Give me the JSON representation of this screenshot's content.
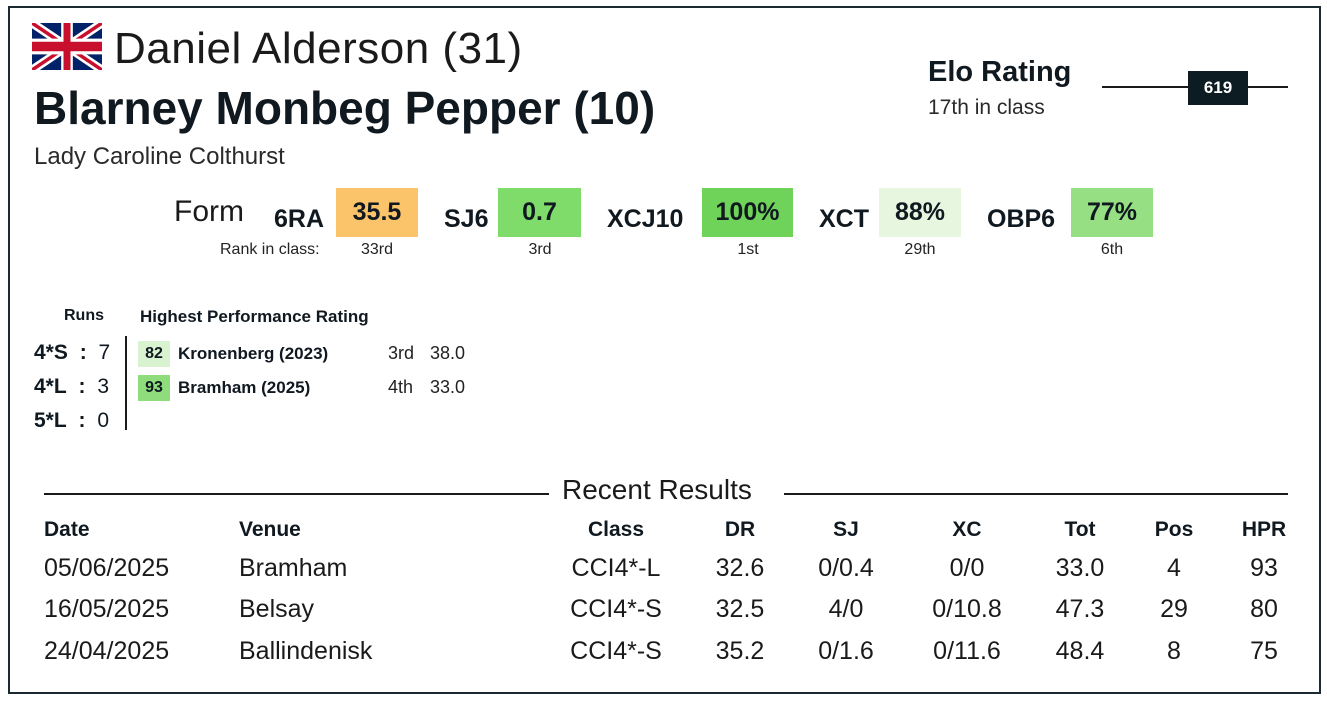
{
  "header": {
    "rider": "Daniel Alderson (31)",
    "horse": "Blarney Monbeg Pepper (10)",
    "owner": "Lady Caroline Colthurst",
    "flag_icon": "uk-flag-icon"
  },
  "elo": {
    "title": "Elo Rating",
    "subtitle": "17th in class",
    "value": "619"
  },
  "form": {
    "label": "Form",
    "rank_label": "Rank in class:",
    "items": [
      {
        "key": "6RA",
        "value": "35.5",
        "rank": "33rd",
        "color": "#fbc46a"
      },
      {
        "key": "SJ6",
        "value": "0.7",
        "rank": "3rd",
        "color": "#7fdb6a"
      },
      {
        "key": "XCJ10",
        "value": "100%",
        "rank": "1st",
        "color": "#6fd35a"
      },
      {
        "key": "XCT",
        "value": "88%",
        "rank": "29th",
        "color": "#e6f6df"
      },
      {
        "key": "OBP6",
        "value": "77%",
        "rank": "6th",
        "color": "#97df83"
      }
    ]
  },
  "runs": {
    "heading": "Runs",
    "rows": [
      {
        "level": "4*S",
        "sep": ":",
        "count": "7"
      },
      {
        "level": "4*L",
        "sep": ":",
        "count": "3"
      },
      {
        "level": "5*L",
        "sep": ":",
        "count": "0"
      }
    ]
  },
  "hpr": {
    "heading": "Highest Performance Rating",
    "rows": [
      {
        "score": "82",
        "event": "Kronenberg  (2023)",
        "pos": "3rd",
        "value": "38.0",
        "color": "#d9f2d0"
      },
      {
        "score": "93",
        "event": "Bramham  (2025)",
        "pos": "4th",
        "value": "33.0",
        "color": "#8fdc7c"
      }
    ]
  },
  "recent": {
    "title": "Recent Results",
    "columns": [
      "Date",
      "Venue",
      "Class",
      "DR",
      "SJ",
      "XC",
      "Tot",
      "Pos",
      "HPR"
    ],
    "rows": [
      [
        "05/06/2025",
        "Bramham",
        "CCI4*-L",
        "32.6",
        "0/0.4",
        "0/0",
        "33.0",
        "4",
        "93"
      ],
      [
        "16/05/2025",
        "Belsay",
        "CCI4*-S",
        "32.5",
        "4/0",
        "0/10.8",
        "47.3",
        "29",
        "80"
      ],
      [
        "24/04/2025",
        "Ballindenisk",
        "CCI4*-S",
        "35.2",
        "0/1.6",
        "0/11.6",
        "48.4",
        "8",
        "75"
      ]
    ]
  }
}
